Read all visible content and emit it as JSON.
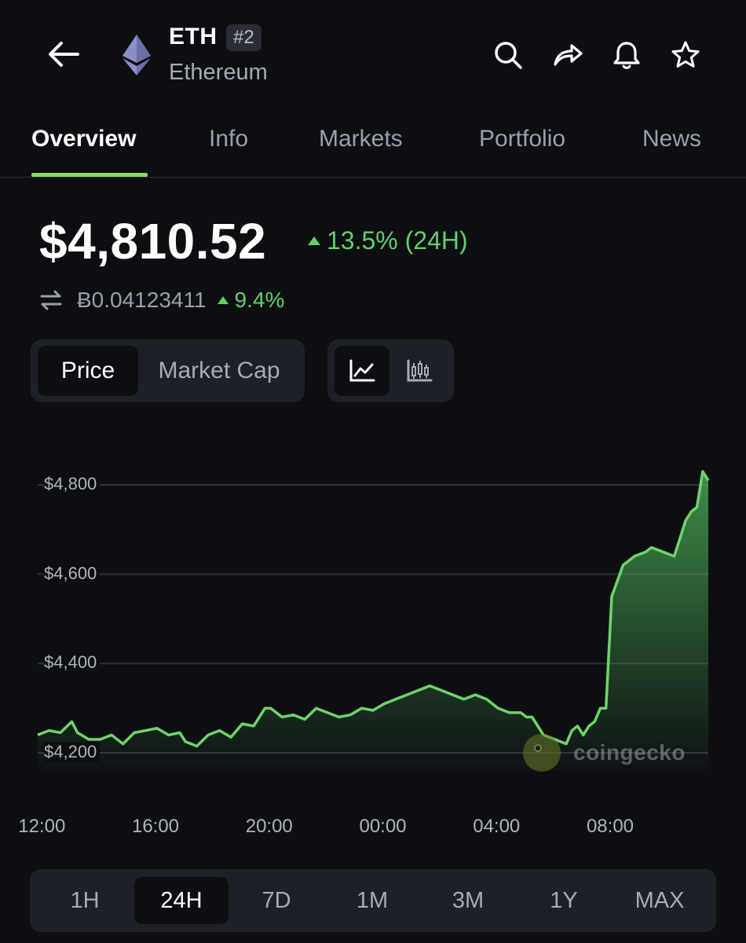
{
  "header": {
    "symbol": "ETH",
    "rank": "#2",
    "name": "Ethereum",
    "icons": [
      "back-arrow-icon",
      "ethereum-logo-icon",
      "search-icon",
      "share-icon",
      "bell-icon",
      "star-icon"
    ]
  },
  "tabs": [
    {
      "label": "Overview",
      "active": true
    },
    {
      "label": "Info",
      "active": false
    },
    {
      "label": "Markets",
      "active": false
    },
    {
      "label": "Portfolio",
      "active": false
    },
    {
      "label": "News",
      "active": false
    }
  ],
  "price": {
    "value": "$4,810.52",
    "change_24h": "13.5% (24H)",
    "btc_value": "Ƀ0.04123411",
    "btc_change": "9.4%"
  },
  "chart_toggle": {
    "options": [
      "Price",
      "Market Cap"
    ],
    "selected": "Price"
  },
  "chart_type_toggle": {
    "options": [
      "line-chart-icon",
      "candlestick-chart-icon"
    ],
    "selected": "line-chart-icon"
  },
  "range": {
    "options": [
      "1H",
      "24H",
      "7D",
      "1M",
      "3M",
      "1Y",
      "MAX"
    ],
    "selected": "24H"
  },
  "watermark": "coingecko",
  "colors": {
    "background": "#0d0e12",
    "accent_green": "#5fd06a",
    "line_green": "#6fd46a",
    "tab_underline": "#8bdc65",
    "muted_text": "#9aa0ad",
    "panel": "#1e2027"
  },
  "chart_data": {
    "type": "area",
    "title": "",
    "xlabel": "",
    "ylabel": "",
    "y_tick_labels": [
      "$4,800",
      "$4,600",
      "$4,400",
      "$4,200"
    ],
    "y_ticks": [
      4800,
      4600,
      4400,
      4200
    ],
    "x_tick_labels": [
      "12:00",
      "16:00",
      "20:00",
      "00:00",
      "04:00",
      "08:00"
    ],
    "x_ticks": [
      12,
      16,
      20,
      24,
      28,
      32
    ],
    "xlim": [
      11.8,
      35.4
    ],
    "ylim": [
      4100,
      4850
    ],
    "grid": true,
    "series": [
      {
        "x": [
          11.8,
          12.2,
          12.6,
          13.0,
          13.2,
          13.6,
          14.0,
          14.4,
          14.8,
          15.2,
          15.6,
          16.0,
          16.4,
          16.8,
          17.0,
          17.4,
          17.8,
          18.2,
          18.6,
          19.0,
          19.4,
          19.8,
          20.0,
          20.4,
          20.8,
          21.2,
          21.6,
          22.0,
          22.4,
          22.8,
          23.2,
          23.6,
          24.0,
          24.4,
          24.8,
          25.2,
          25.6,
          26.0,
          26.4,
          26.8,
          27.2,
          27.6,
          28.0,
          28.4,
          28.8,
          29.0,
          29.2,
          29.6,
          30.0,
          30.4,
          30.6,
          30.8,
          31.0,
          31.2,
          31.4,
          31.6,
          31.8,
          32.0,
          32.4,
          32.8,
          33.2,
          33.4,
          33.8,
          34.2,
          34.6,
          34.8,
          35.0,
          35.2,
          35.4
        ],
        "y": [
          4240,
          4250,
          4245,
          4270,
          4245,
          4230,
          4230,
          4240,
          4220,
          4245,
          4250,
          4255,
          4240,
          4245,
          4225,
          4215,
          4240,
          4250,
          4235,
          4265,
          4260,
          4300,
          4300,
          4280,
          4285,
          4275,
          4300,
          4290,
          4280,
          4285,
          4300,
          4295,
          4310,
          4320,
          4330,
          4340,
          4350,
          4340,
          4330,
          4320,
          4330,
          4320,
          4300,
          4290,
          4290,
          4280,
          4280,
          4240,
          4230,
          4220,
          4250,
          4260,
          4240,
          4260,
          4270,
          4300,
          4300,
          4550,
          4620,
          4640,
          4650,
          4660,
          4650,
          4640,
          4720,
          4740,
          4750,
          4830,
          4810
        ]
      }
    ]
  }
}
